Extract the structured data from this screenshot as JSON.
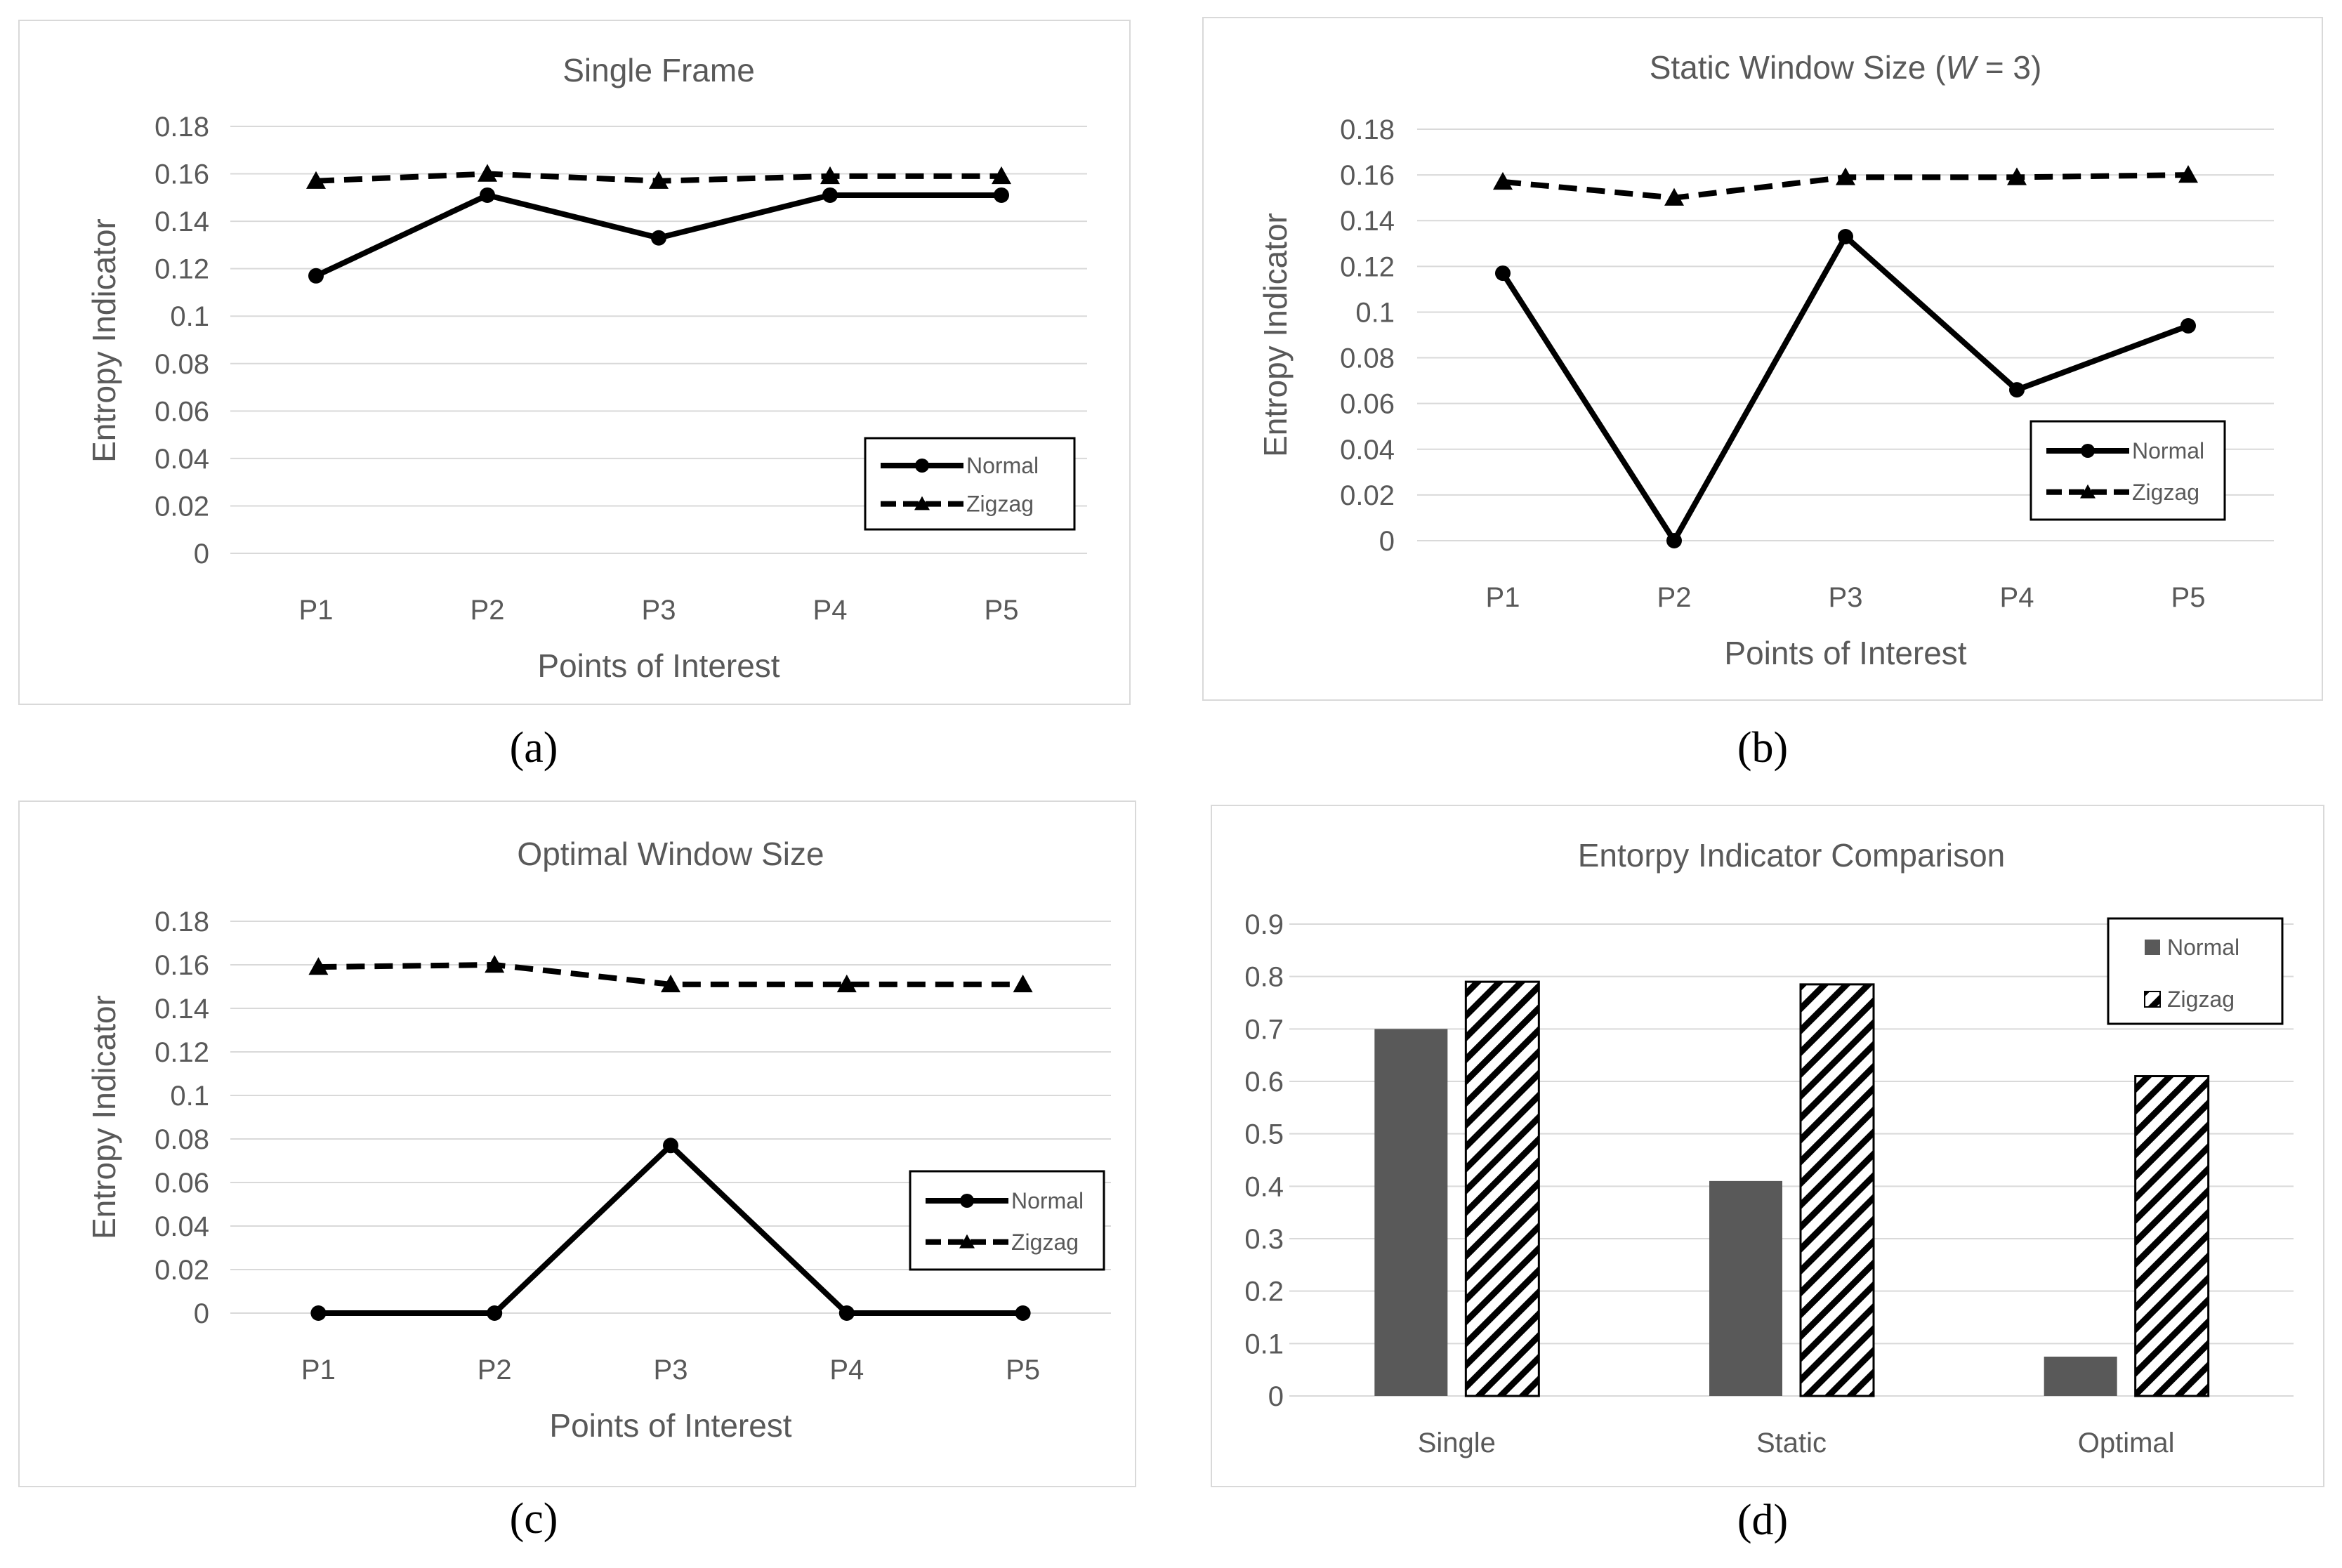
{
  "chart_data": [
    {
      "id": "a",
      "type": "line",
      "title": "Single Frame",
      "xlabel": "Points of Interest",
      "ylabel": "Entropy Indicator",
      "categories": [
        "P1",
        "P2",
        "P3",
        "P4",
        "P5"
      ],
      "ylim": [
        0,
        0.18
      ],
      "yticks": [
        "0",
        "0.02",
        "0.04",
        "0.06",
        "0.08",
        "0.1",
        "0.12",
        "0.14",
        "0.16",
        "0.18"
      ],
      "series": [
        {
          "name": "Normal",
          "values": [
            0.117,
            0.151,
            0.133,
            0.151,
            0.151
          ]
        },
        {
          "name": "Zigzag",
          "values": [
            0.157,
            0.16,
            0.157,
            0.159,
            0.159
          ]
        }
      ],
      "legend_position": "bottom-right",
      "caption": "(a)"
    },
    {
      "id": "b",
      "type": "line",
      "title_prefix": "Static Window Size (",
      "title_var": "W",
      "title_suffix": " = 3)",
      "xlabel": "Points of Interest",
      "ylabel": "Entropy Indicator",
      "categories": [
        "P1",
        "P2",
        "P3",
        "P4",
        "P5"
      ],
      "ylim": [
        0,
        0.18
      ],
      "yticks": [
        "0",
        "0.02",
        "0.04",
        "0.06",
        "0.08",
        "0.1",
        "0.12",
        "0.14",
        "0.16",
        "0.18"
      ],
      "series": [
        {
          "name": "Normal",
          "values": [
            0.117,
            0.0,
            0.133,
            0.066,
            0.094
          ]
        },
        {
          "name": "Zigzag",
          "values": [
            0.157,
            0.15,
            0.159,
            0.159,
            0.16
          ]
        }
      ],
      "legend_position": "bottom-right",
      "caption": "(b)"
    },
    {
      "id": "c",
      "type": "line",
      "title": "Optimal Window Size",
      "xlabel": "Points of Interest",
      "ylabel": "Entropy Indicator",
      "categories": [
        "P1",
        "P2",
        "P3",
        "P4",
        "P5"
      ],
      "ylim": [
        0,
        0.18
      ],
      "yticks": [
        "0",
        "0.02",
        "0.04",
        "0.06",
        "0.08",
        "0.1",
        "0.12",
        "0.14",
        "0.16",
        "0.18"
      ],
      "series": [
        {
          "name": "Normal",
          "values": [
            0.0,
            0.0,
            0.077,
            0.0,
            0.0
          ]
        },
        {
          "name": "Zigzag",
          "values": [
            0.159,
            0.16,
            0.151,
            0.151,
            0.151
          ]
        }
      ],
      "legend_position": "bottom-right",
      "caption": "(c)"
    },
    {
      "id": "d",
      "type": "bar",
      "title": "Entorpy Indicator Comparison",
      "xlabel": "",
      "ylabel": "",
      "categories": [
        "Single",
        "Static",
        "Optimal"
      ],
      "ylim": [
        0,
        0.9
      ],
      "yticks": [
        "0",
        "0.1",
        "0.2",
        "0.3",
        "0.4",
        "0.5",
        "0.6",
        "0.7",
        "0.8",
        "0.9"
      ],
      "series": [
        {
          "name": "Normal",
          "values": [
            0.7,
            0.41,
            0.075
          ]
        },
        {
          "name": "Zigzag",
          "values": [
            0.79,
            0.785,
            0.61
          ]
        }
      ],
      "legend_position": "top-right",
      "caption": "(d)"
    }
  ],
  "colors": {
    "normal_line": "#000000",
    "zigzag_line": "#000000",
    "normal_bar": "#595959",
    "grid": "#d9d9d9",
    "text": "#595959"
  }
}
